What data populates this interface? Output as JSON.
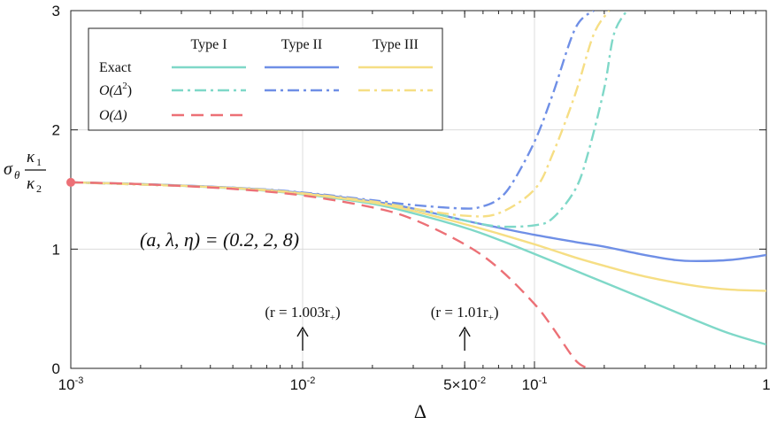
{
  "chart_data": {
    "type": "line",
    "xscale": "log",
    "xlim": [
      0.001,
      1
    ],
    "ylim": [
      0,
      3
    ],
    "xlabel": "Δ",
    "ylabel": {
      "sigma": "σ",
      "theta": "θ",
      "kappa": "κ",
      "sub1": "1",
      "sub2": "2"
    },
    "grid": true,
    "x_ticks": [
      {
        "value": 0.001,
        "base": "10",
        "exp": "-3"
      },
      {
        "value": 0.01,
        "base": "10",
        "exp": "-2"
      },
      {
        "value": 0.05,
        "base": "5×10",
        "exp": "-2"
      },
      {
        "value": 0.1,
        "base": "10",
        "exp": "-1"
      },
      {
        "value": 1,
        "base": "1",
        "exp": ""
      }
    ],
    "y_ticks": [
      "0",
      "1",
      "2",
      "3"
    ],
    "y_tick_values": [
      0,
      1,
      2,
      3
    ],
    "annotation_params": "(a, λ, η) = (0.2, 2, 8)",
    "markers": [
      {
        "label": "(r = 1.003r",
        "sub": "+",
        "close": ")",
        "x": 0.01
      },
      {
        "label": "(r = 1.01r",
        "sub": "+",
        "close": ")",
        "x": 0.05
      }
    ],
    "start_point": {
      "x": 0.001,
      "y": 1.56
    },
    "legend": {
      "columns": [
        "Type I",
        "Type II",
        "Type III"
      ],
      "rows": [
        {
          "label": "Exact",
          "styles": [
            "solid",
            "solid",
            "solid"
          ]
        },
        {
          "label": "O(Δ²)",
          "main": "O(Δ",
          "sup": "2",
          "close": ")",
          "styles": [
            "dashdot",
            "dashdot",
            "dashdot"
          ]
        },
        {
          "label": "O(Δ)",
          "main": "O(Δ)",
          "styles": [
            "dashed"
          ]
        }
      ]
    },
    "colors": {
      "type1": "#7fd8c8",
      "type2": "#6f8fe6",
      "type3": "#f6de84",
      "first_order": "#ec7076"
    },
    "series": [
      {
        "name": "Type I Exact",
        "color": "#7fd8c8",
        "style": "solid",
        "x": [
          0.001,
          0.002,
          0.005,
          0.01,
          0.02,
          0.03,
          0.05,
          0.07,
          0.1,
          0.15,
          0.2,
          0.3,
          0.5,
          0.7,
          1.0
        ],
        "y": [
          1.56,
          1.545,
          1.51,
          1.46,
          1.38,
          1.3,
          1.18,
          1.08,
          0.96,
          0.82,
          0.72,
          0.58,
          0.4,
          0.29,
          0.2
        ]
      },
      {
        "name": "Type II Exact",
        "color": "#6f8fe6",
        "style": "solid",
        "x": [
          0.001,
          0.002,
          0.005,
          0.01,
          0.02,
          0.03,
          0.05,
          0.07,
          0.1,
          0.15,
          0.2,
          0.3,
          0.4,
          0.5,
          0.7,
          1.0
        ],
        "y": [
          1.56,
          1.545,
          1.515,
          1.47,
          1.4,
          1.34,
          1.24,
          1.18,
          1.12,
          1.06,
          1.02,
          0.95,
          0.91,
          0.9,
          0.91,
          0.95
        ]
      },
      {
        "name": "Type III Exact",
        "color": "#f6de84",
        "style": "solid",
        "x": [
          0.001,
          0.002,
          0.005,
          0.01,
          0.02,
          0.03,
          0.05,
          0.07,
          0.1,
          0.15,
          0.2,
          0.3,
          0.5,
          0.7,
          1.0
        ],
        "y": [
          1.56,
          1.545,
          1.512,
          1.465,
          1.39,
          1.32,
          1.21,
          1.13,
          1.04,
          0.93,
          0.86,
          0.77,
          0.69,
          0.66,
          0.65
        ]
      },
      {
        "name": "Type I O(Δ²)",
        "color": "#7fd8c8",
        "style": "dashdot",
        "x": [
          0.001,
          0.005,
          0.01,
          0.02,
          0.03,
          0.05,
          0.07,
          0.1,
          0.12,
          0.15,
          0.17,
          0.2,
          0.22,
          0.25
        ],
        "y": [
          1.56,
          1.515,
          1.47,
          1.4,
          1.34,
          1.24,
          1.19,
          1.2,
          1.26,
          1.5,
          1.8,
          2.35,
          2.8,
          3.0
        ]
      },
      {
        "name": "Type II O(Δ²)",
        "color": "#6f8fe6",
        "style": "dashdot",
        "x": [
          0.001,
          0.005,
          0.01,
          0.02,
          0.03,
          0.05,
          0.06,
          0.07,
          0.08,
          0.1,
          0.12,
          0.15,
          0.18
        ],
        "y": [
          1.56,
          1.515,
          1.475,
          1.41,
          1.37,
          1.34,
          1.36,
          1.42,
          1.55,
          1.9,
          2.3,
          2.85,
          3.0
        ]
      },
      {
        "name": "Type III O(Δ²)",
        "color": "#f6de84",
        "style": "dashdot",
        "x": [
          0.001,
          0.005,
          0.01,
          0.02,
          0.03,
          0.05,
          0.07,
          0.1,
          0.12,
          0.15,
          0.18,
          0.21
        ],
        "y": [
          1.56,
          1.513,
          1.468,
          1.4,
          1.34,
          1.28,
          1.3,
          1.5,
          1.8,
          2.3,
          2.8,
          3.0
        ]
      },
      {
        "name": "O(Δ)",
        "color": "#ec7076",
        "style": "dashed",
        "x": [
          0.001,
          0.002,
          0.005,
          0.01,
          0.02,
          0.03,
          0.05,
          0.07,
          0.1,
          0.12,
          0.15,
          0.17
        ],
        "y": [
          1.56,
          1.545,
          1.505,
          1.45,
          1.35,
          1.25,
          1.04,
          0.84,
          0.54,
          0.34,
          0.07,
          0.0
        ]
      }
    ]
  }
}
